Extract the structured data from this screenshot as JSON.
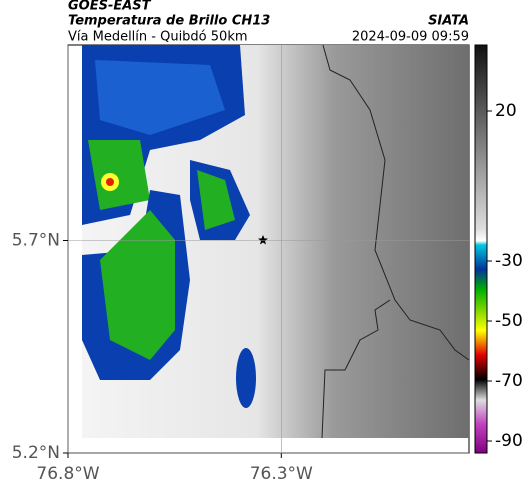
{
  "header": {
    "satellite": "GOES-EAST",
    "product": "Temperatura de Brillo CH13",
    "region": "Vía Medellín - Quibdó 50km",
    "source": "SIATA",
    "datetime": "2024-09-09 09:59"
  },
  "map": {
    "xlim": [
      -76.8,
      -75.86
    ],
    "ylim": [
      5.2,
      6.16
    ],
    "xticks": [
      {
        "value": -76.8,
        "label": "76.8°W"
      },
      {
        "value": -76.3,
        "label": "76.3°W"
      }
    ],
    "yticks": [
      {
        "value": 5.2,
        "label": "5.2°N"
      },
      {
        "value": 5.7,
        "label": "5.7°N"
      }
    ],
    "grid": true
  },
  "colorbar": {
    "clim": [
      42,
      -94
    ],
    "ticks": [
      20,
      -30,
      -50,
      -70,
      -90
    ]
  }
}
